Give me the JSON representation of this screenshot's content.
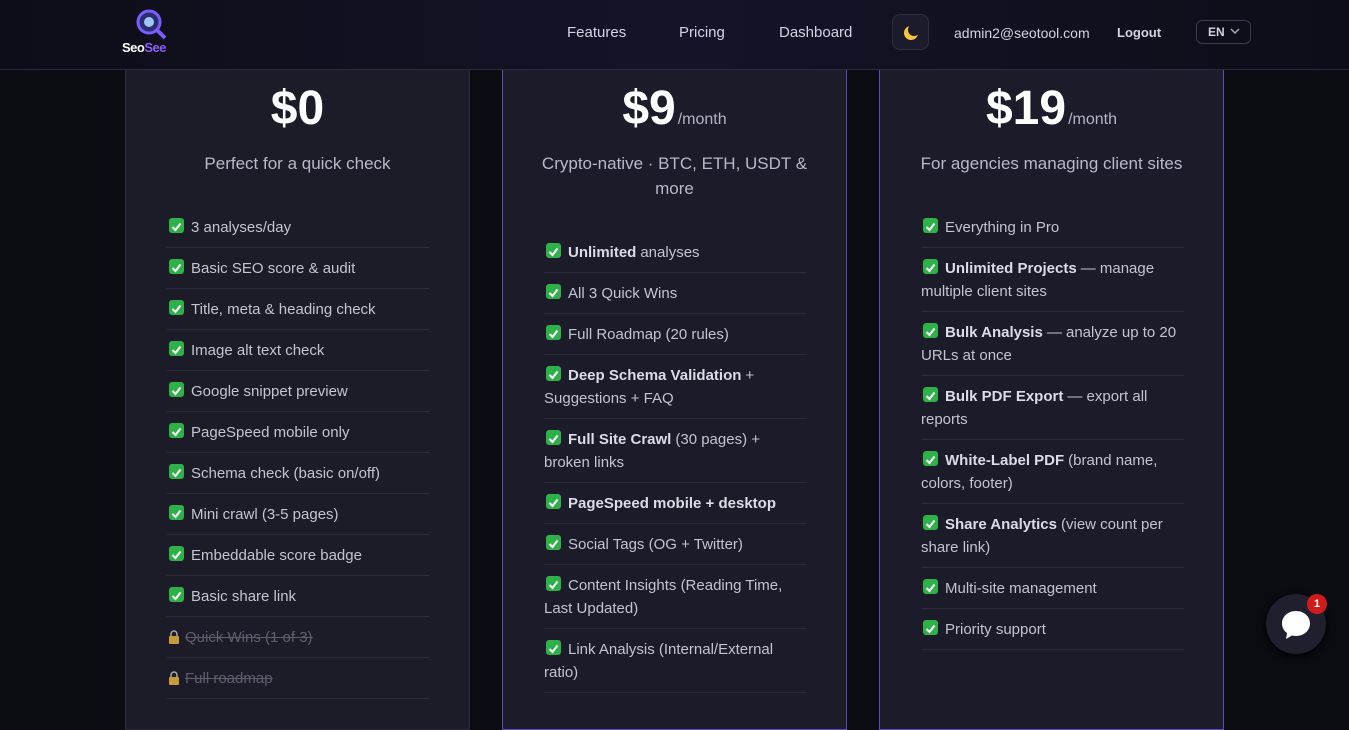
{
  "nav": {
    "logo": [
      "Seo",
      "See"
    ],
    "links": [
      "Features",
      "Pricing",
      "Dashboard"
    ],
    "email": "admin2@seotool.com",
    "logout": "Logout",
    "language": "EN"
  },
  "plans": [
    {
      "price": "$0",
      "subtitle": "Perfect for a quick check",
      "features": [
        "3 analyses/day",
        "Basic SEO score & audit",
        "Title, meta & heading check",
        "Image alt text check",
        "Google snippet preview",
        "PageSpeed mobile only",
        "Schema check (basic on/off)",
        "Mini crawl (3-5 pages)",
        "Embeddable score badge",
        "Basic share link"
      ],
      "locked": [
        "Quick Wins (1 of 3)",
        "Full roadmap"
      ]
    },
    {
      "price": "$9",
      "period": "/month",
      "subtitle": "Crypto-native · BTC, ETH, USDT & more",
      "features": [
        {
          "strong": "Unlimited",
          "rest": "analyses"
        },
        "All 3 Quick Wins",
        "Full Roadmap (20 rules)",
        {
          "strong": "Deep Schema Validation",
          "rest": "+ Suggestions + FAQ"
        },
        {
          "strong": "Full Site Crawl",
          "rest": "(30 pages) + broken links"
        },
        {
          "strong": "PageSpeed mobile + desktop"
        },
        "Social Tags (OG + Twitter)",
        "Content Insights (Reading Time, Last Updated)",
        "Link Analysis (Internal/External ratio)"
      ]
    },
    {
      "price": "$19",
      "period": "/month",
      "subtitle": "For agencies managing client sites",
      "features": [
        "Everything in Pro",
        {
          "strong": "Unlimited Projects",
          "rest": "— manage multiple client sites"
        },
        {
          "strong": "Bulk Analysis",
          "rest": "— analyze up to 20 URLs at once"
        },
        {
          "strong": "Bulk PDF Export",
          "rest": "— export all reports"
        },
        {
          "strong": "White-Label PDF",
          "rest": "(brand name, colors, footer)"
        },
        {
          "strong": "Share Analytics",
          "rest": "(view count per share link)"
        },
        "Multi-site management",
        "Priority support"
      ]
    }
  ],
  "chat": {
    "badge": 1
  }
}
